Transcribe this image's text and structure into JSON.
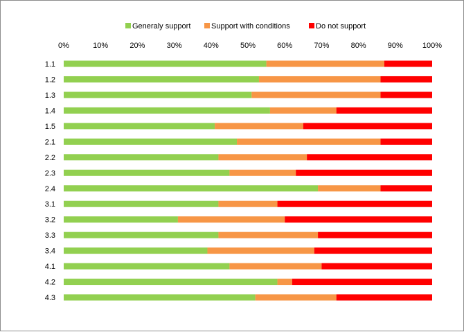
{
  "chart_data": {
    "type": "bar",
    "orientation": "horizontal",
    "stacked": "100%",
    "categories": [
      "1.1",
      "1.2",
      "1.3",
      "1.4",
      "1.5",
      "2.1",
      "2.2",
      "2.3",
      "2.4",
      "3.1",
      "3.2",
      "3.3",
      "3.4",
      "4.1",
      "4.2",
      "4.3"
    ],
    "series": [
      {
        "name": "Generaly support",
        "color": "#92d050",
        "values": [
          55,
          53,
          51,
          56,
          41,
          47,
          42,
          45,
          69,
          42,
          31,
          42,
          39,
          45,
          58,
          52
        ]
      },
      {
        "name": "Support with conditions",
        "color": "#f79646",
        "values": [
          32,
          33,
          35,
          18,
          24,
          39,
          24,
          18,
          17,
          16,
          29,
          27,
          29,
          25,
          4,
          22
        ]
      },
      {
        "name": "Do not support",
        "color": "#ff0000",
        "values": [
          13,
          14,
          14,
          26,
          35,
          14,
          34,
          37,
          14,
          42,
          40,
          31,
          32,
          30,
          38,
          26
        ]
      }
    ],
    "x_ticks": [
      "0%",
      "10%",
      "20%",
      "30%",
      "40%",
      "50%",
      "60%",
      "70%",
      "80%",
      "90%",
      "100%"
    ],
    "xlim": [
      0,
      100
    ],
    "x_axis_position": "top",
    "grid": false,
    "legend_position": "top",
    "title": "",
    "xlabel": "",
    "ylabel": ""
  }
}
